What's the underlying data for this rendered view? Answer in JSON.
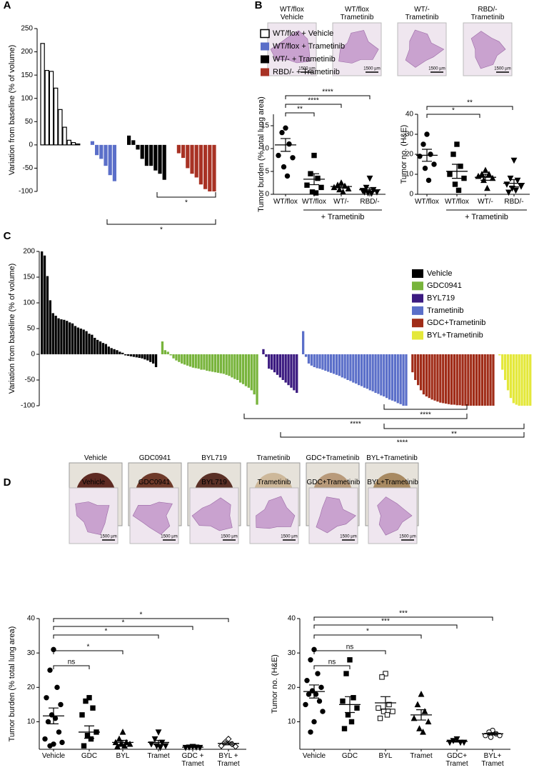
{
  "panel_labels": [
    "A",
    "B",
    "C",
    "D"
  ],
  "b_images": [
    "WT/flox\nVehicle",
    "WT/flox\nTrametinib",
    "WT/-\nTrametinib",
    "RBD/-\nTrametinib"
  ],
  "c_photos": [
    "Vehicle",
    "GDC0941",
    "BYL719",
    "Trametinib",
    "GDC+Trametinib",
    "BYL+Trametinib"
  ],
  "d_images": [
    "Vehicle",
    "GDC0941",
    "BYL719",
    "Trametinib",
    "GDC+Trametinib",
    "BYL+Trametinib"
  ],
  "scale_bar": "1500 µm",
  "chart_data": [
    {
      "type": "bar",
      "ylabel": "Variation from baseline (% of volume)",
      "ylim": [
        -100,
        250
      ],
      "yticks": [
        -100,
        -50,
        0,
        50,
        100,
        150,
        200,
        250
      ],
      "series": [
        {
          "name": "WT/flox + Vehicle",
          "color": "#ffffff",
          "outline": "#000000",
          "values": [
            218,
            160,
            158,
            122,
            76,
            38,
            10,
            5,
            2
          ]
        },
        {
          "name": "WT/flox + Trametinib",
          "color": "#5b6fc9",
          "values": [
            8,
            -22,
            -30,
            -45,
            -65,
            -78
          ]
        },
        {
          "name": "WT/- + Trametinib",
          "color": "#000000",
          "values": [
            20,
            10,
            -10,
            -30,
            -45,
            -45,
            -55,
            -62,
            -75
          ]
        },
        {
          "name": "RBD/- + Trametinib",
          "color": "#a83224",
          "values": [
            -18,
            -28,
            -50,
            -62,
            -70,
            -85,
            -95,
            -100,
            -100
          ]
        }
      ],
      "annotations": [
        "*",
        "*"
      ]
    },
    {
      "type": "strip",
      "ylabel": "Tumor burden (% total lung area)",
      "ylim": [
        0,
        17.5
      ],
      "yticks": [
        0,
        5,
        10,
        15
      ],
      "categories": [
        "WT/flox",
        "WT/flox",
        "WT/-",
        "RBD/-"
      ],
      "group_label": "+ Trametinib",
      "markers": [
        "circle",
        "square",
        "triangle",
        "triangle-down"
      ],
      "points": [
        [
          14.5,
          13.5,
          11,
          8.5,
          8,
          6,
          4
        ],
        [
          8.5,
          4.5,
          3.5,
          2,
          1.5,
          0.5,
          0.3
        ],
        [
          2.5,
          2,
          1.8,
          1.5,
          1.2,
          1,
          0.5
        ],
        [
          3.5,
          1.5,
          1,
          0.8,
          0.5,
          0.3,
          0.2,
          0.5
        ]
      ],
      "means": [
        10.8,
        3.3,
        1.7,
        1
      ],
      "sems": [
        1.4,
        1.2,
        0.3,
        0.4
      ],
      "annotations": [
        "**",
        "****",
        "****"
      ]
    },
    {
      "type": "strip",
      "ylabel": "Tumor no. (H&E)",
      "ylim": [
        0,
        40
      ],
      "yticks": [
        0,
        10,
        20,
        30,
        40
      ],
      "categories": [
        "WT/flox",
        "WT/flox",
        "WT/-",
        "RBD/-"
      ],
      "group_label": "+ Trametinib",
      "markers": [
        "circle",
        "square",
        "triangle",
        "triangle-down"
      ],
      "points": [
        [
          30,
          25,
          20,
          19,
          15,
          13,
          7
        ],
        [
          25,
          20,
          14,
          10,
          8,
          5,
          2
        ],
        [
          12,
          10,
          10,
          9,
          8,
          7,
          3
        ],
        [
          17,
          8,
          7,
          5,
          4,
          3,
          2,
          1
        ]
      ],
      "means": [
        19.5,
        11.5,
        8.5,
        5.5
      ],
      "sems": [
        3,
        3.5,
        1.5,
        1.8
      ],
      "annotations": [
        "*",
        "**"
      ]
    },
    {
      "type": "bar",
      "ylabel": "Variation from baseline (% of volume)",
      "ylim": [
        -100,
        200
      ],
      "yticks": [
        -100,
        -50,
        0,
        50,
        100,
        150,
        200
      ],
      "series": [
        {
          "name": "Vehicle",
          "color": "#000000",
          "values": [
            200,
            192,
            152,
            105,
            80,
            75,
            70,
            68,
            67,
            65,
            62,
            60,
            55,
            52,
            50,
            48,
            45,
            40,
            38,
            32,
            28,
            25,
            22,
            20,
            15,
            12,
            10,
            8,
            5,
            3,
            -2,
            -3,
            -4,
            -5,
            -6,
            -7,
            -8,
            -10,
            -12,
            -15,
            -18,
            -25
          ]
        },
        {
          "name": "GDC0941",
          "color": "#78b43c",
          "values": [
            25,
            8,
            5,
            -2,
            -8,
            -12,
            -15,
            -18,
            -20,
            -22,
            -24,
            -26,
            -27,
            -28,
            -30,
            -30,
            -32,
            -33,
            -34,
            -35,
            -36,
            -37,
            -38,
            -40,
            -42,
            -45,
            -48,
            -50,
            -55,
            -58,
            -62,
            -65,
            -70,
            -78,
            -98
          ]
        },
        {
          "name": "BYL719",
          "color": "#3b1a80",
          "values": [
            10,
            -5,
            -28,
            -30,
            -35,
            -40,
            -45,
            -50,
            -55,
            -60,
            -65,
            -70,
            -75
          ]
        },
        {
          "name": "Trametinib",
          "color": "#5b6fc9",
          "values": [
            45,
            -5,
            -18,
            -22,
            -25,
            -27,
            -28,
            -30,
            -32,
            -34,
            -36,
            -38,
            -40,
            -42,
            -45,
            -47,
            -50,
            -52,
            -55,
            -57,
            -60,
            -62,
            -65,
            -67,
            -70,
            -72,
            -75,
            -77,
            -80,
            -82,
            -85,
            -88,
            -90,
            -92,
            -95,
            -97,
            -100,
            -100
          ]
        },
        {
          "name": "GDC+Trametinib",
          "color": "#a02c18",
          "values": [
            -35,
            -50,
            -60,
            -70,
            -78,
            -82,
            -85,
            -88,
            -90,
            -92,
            -94,
            -95,
            -96,
            -97,
            -98,
            -98,
            -99,
            -99,
            -100,
            -100,
            -100,
            -100,
            -100,
            -100,
            -100,
            -100,
            -100,
            -100,
            -100,
            -100
          ]
        },
        {
          "name": "BYL+Trametinib",
          "color": "#e4e83a",
          "values": [
            -2,
            -30,
            -50,
            -70,
            -85,
            -95,
            -98,
            -100,
            -100,
            -100,
            -100,
            -100
          ]
        }
      ],
      "annotations": [
        "****",
        "****",
        "**",
        "****"
      ]
    },
    {
      "type": "strip",
      "ylabel": "Tumor burden (% total lung area)",
      "ylim": [
        2,
        40
      ],
      "yticks": [
        10,
        20,
        30,
        40
      ],
      "categories": [
        "Vehicle",
        "GDC",
        "BYL",
        "Tramet",
        "GDC +\nTramet",
        "BYL +\nTramet"
      ],
      "markers": [
        "circle",
        "square",
        "triangle",
        "triangle-down",
        "triangle-down",
        "diamond-open"
      ],
      "points": [
        [
          31,
          25,
          20,
          17,
          15,
          12,
          11,
          10,
          7,
          5,
          4,
          3.5,
          3
        ],
        [
          17,
          16,
          14,
          12,
          7,
          6,
          5,
          3
        ],
        [
          7,
          5,
          4,
          4,
          3.5,
          3.5,
          3,
          2.8
        ],
        [
          7,
          5,
          4,
          3.5,
          3,
          3,
          2.5
        ],
        [
          2.8,
          2.6,
          2.6,
          2.5,
          2.5
        ],
        [
          5,
          4,
          3.5,
          3,
          2.8
        ]
      ],
      "means": [
        11.7,
        7,
        4,
        4,
        2.6,
        3.7
      ],
      "sems": [
        2.3,
        1.8,
        0.6,
        0.6,
        0.1,
        0.4
      ],
      "annotations": [
        "ns",
        "*",
        "*",
        "*",
        "*"
      ]
    },
    {
      "type": "strip",
      "ylabel": "Tumor no. (H&E)",
      "ylim": [
        2,
        40
      ],
      "yticks": [
        10,
        20,
        30,
        40
      ],
      "categories": [
        "Vehicle",
        "GDC",
        "BYL",
        "Tramet",
        "GDC+\nTramet",
        "BYL+\nTramet"
      ],
      "markers": [
        "circle",
        "square",
        "square-open",
        "triangle",
        "triangle-down",
        "circle-open"
      ],
      "points": [
        [
          31,
          28,
          24,
          22,
          20,
          19,
          18,
          18,
          16,
          15,
          13,
          10,
          7
        ],
        [
          28,
          24,
          17,
          16,
          14,
          12,
          10,
          8
        ],
        [
          24,
          23,
          15,
          14,
          13,
          13,
          12,
          11
        ],
        [
          18,
          15,
          13,
          11,
          10,
          8,
          7
        ],
        [
          5,
          4.5,
          4,
          4,
          4
        ],
        [
          7.5,
          7,
          6.5,
          6,
          6,
          5.5
        ]
      ],
      "means": [
        18.8,
        15,
        15.5,
        12,
        4.3,
        6.5
      ],
      "sems": [
        1.9,
        2.3,
        1.8,
        1.5,
        0.2,
        0.3
      ],
      "annotations": [
        "ns",
        "ns",
        "*",
        "***",
        "***"
      ]
    }
  ]
}
